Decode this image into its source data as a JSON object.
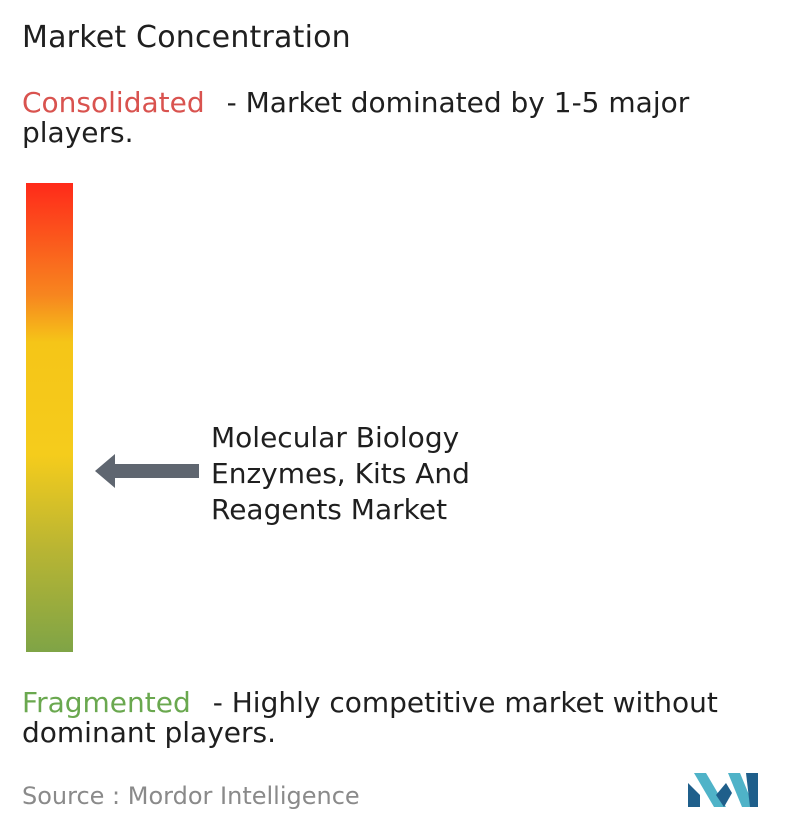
{
  "title": "Market Concentration",
  "consolidated": {
    "keyword": "Consolidated",
    "description": "- Market dominated by 1-5 major players."
  },
  "fragmented": {
    "keyword": "Fragmented",
    "description": "- Highly competitive market without dominant players."
  },
  "marker": {
    "label": "Molecular Biology\nEnzymes, Kits And\nReagents Market",
    "level": 0.62
  },
  "source": "Source :  Mordor Intelligence",
  "colors": {
    "consolidated": "#d9534f",
    "fragmented": "#6aa84f",
    "gradient_top": "#ff2a1a",
    "gradient_middle": "#f5c518",
    "gradient_bottom": "#7fa446",
    "arrow": "#5f6670",
    "logo_dark": "#1f5f8b",
    "logo_light": "#4fb3c8"
  },
  "icons": {
    "arrow": "left-arrow-icon",
    "logo": "mordor-intelligence-logo"
  }
}
